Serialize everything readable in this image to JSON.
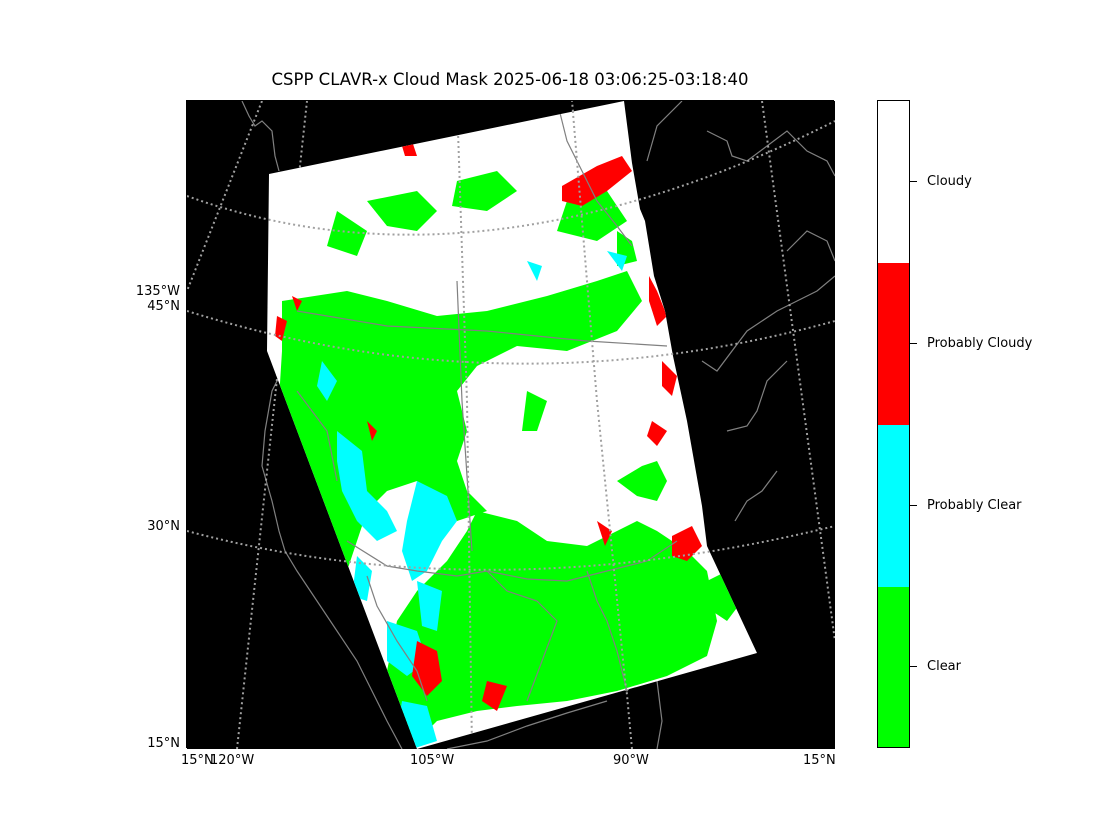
{
  "title": "CSPP CLAVR-x Cloud Mask 2025-06-18 03:06:25-03:18:40",
  "axes": {
    "left_labels": [
      "135°W",
      "45°N",
      "30°N",
      "15°N"
    ],
    "bottom_labels": [
      "15°N",
      "120°W",
      "105°W",
      "90°W",
      "15°N"
    ]
  },
  "colorbar": {
    "categories": [
      {
        "label": "Cloudy",
        "color": "#ffffff"
      },
      {
        "label": "Probably Cloudy",
        "color": "#ff0000"
      },
      {
        "label": "Probably Clear",
        "color": "#00ffff"
      },
      {
        "label": "Clear",
        "color": "#00ff00"
      }
    ]
  },
  "colors": {
    "background": "#000000",
    "coastline": "#808080",
    "graticule": "#a0a0a0"
  }
}
